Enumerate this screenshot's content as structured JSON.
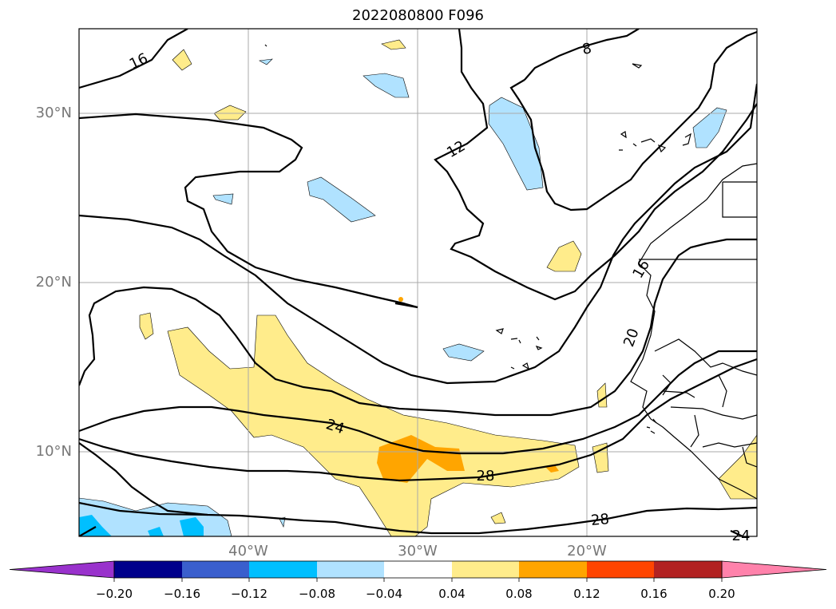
{
  "title": "2022080800 F096",
  "map": {
    "lat_labels": [
      "30°N",
      "20°N",
      "10°N"
    ],
    "lon_labels": [
      "40°W",
      "30°W",
      "20°W"
    ],
    "contour_labels": [
      "16",
      "8",
      "12",
      "16",
      "20",
      "24",
      "28",
      "28",
      "24"
    ]
  },
  "colorbar": {
    "ticks": [
      "−0.20",
      "−0.16",
      "−0.12",
      "−0.08",
      "−0.04",
      "0.04",
      "0.08",
      "0.12",
      "0.16",
      "0.20"
    ],
    "colors": [
      "#9932cc",
      "#00008b",
      "#3a5fcd",
      "#00bfff",
      "#b0e2ff",
      "#ffffff",
      "#ffec8b",
      "#ffa500",
      "#ff4500",
      "#b22222",
      "#ff82ab"
    ],
    "under_color": "#9932cc",
    "over_color": "#ff82ab"
  },
  "colors": {
    "yellow": "#ffec8b",
    "orange": "#ffa500",
    "lightblue": "#b0e2ff",
    "deepblue": "#00bfff",
    "grid": "#aaaaaa"
  }
}
